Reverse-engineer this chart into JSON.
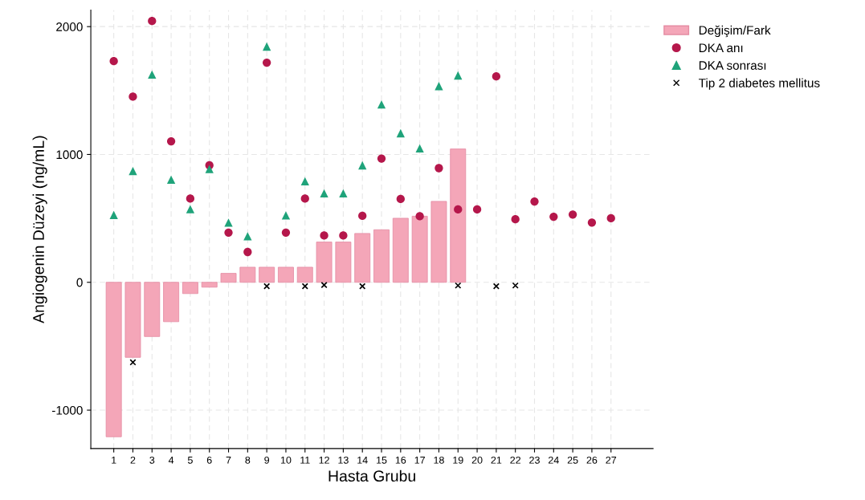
{
  "chart_data": {
    "type": "bar",
    "xlabel": "Hasta Grubu",
    "ylabel": "Angiogenin Düzeyi (ng/mL)",
    "x": [
      1,
      2,
      3,
      4,
      5,
      6,
      7,
      8,
      9,
      10,
      11,
      12,
      13,
      14,
      15,
      16,
      17,
      18,
      19,
      20,
      21,
      22,
      23,
      24,
      25,
      26,
      27
    ],
    "xlim": [
      -0.2,
      29.2
    ],
    "xticks": [
      1,
      2,
      3,
      4,
      5,
      6,
      7,
      8,
      9,
      10,
      11,
      12,
      13,
      14,
      15,
      16,
      17,
      18,
      19,
      20,
      21,
      22,
      23,
      24,
      25,
      26,
      27
    ],
    "ylim": [
      -1300,
      2130
    ],
    "yticks": [
      -1000,
      0,
      1000,
      2000
    ],
    "grid": true,
    "legend": "top right",
    "series": [
      {
        "name": "Değişim/Fark",
        "color": "#f4a6b8",
        "values": [
          -1208,
          -587,
          -424,
          -308,
          -88,
          -38,
          70,
          118,
          118,
          118,
          118,
          315,
          315,
          382,
          411,
          501,
          517,
          633,
          1043,
          null,
          null,
          null,
          null,
          null,
          null,
          null,
          null
        ]
      },
      {
        "name": "DKA anı",
        "type": "scatter",
        "marker": "circle",
        "color": "#b5174b",
        "values": [
          1730,
          1452,
          2044,
          1103,
          655,
          915,
          389,
          237,
          1718,
          389,
          655,
          366,
          366,
          520,
          968,
          652,
          517,
          893,
          570,
          570,
          1611,
          493,
          632,
          513,
          530,
          467,
          501
        ]
      },
      {
        "name": "DKA sonrası",
        "type": "scatter",
        "marker": "triangle",
        "color": "#1fa37a",
        "values": [
          527,
          870,
          1625,
          803,
          572,
          886,
          467,
          360,
          1844,
          523,
          790,
          696,
          696,
          915,
          1391,
          1166,
          1047,
          1535,
          1618,
          null,
          null,
          null,
          null,
          null,
          null,
          null,
          null
        ]
      },
      {
        "name": "Tip 2 diabetes mellitus",
        "type": "scatter",
        "marker": "cross",
        "color": "#000000",
        "values": [
          null,
          -626,
          null,
          null,
          null,
          null,
          null,
          null,
          -31,
          null,
          -31,
          -21,
          null,
          -31,
          null,
          null,
          null,
          null,
          -25,
          null,
          -31,
          -25,
          null,
          null,
          null,
          null,
          null
        ]
      }
    ]
  }
}
